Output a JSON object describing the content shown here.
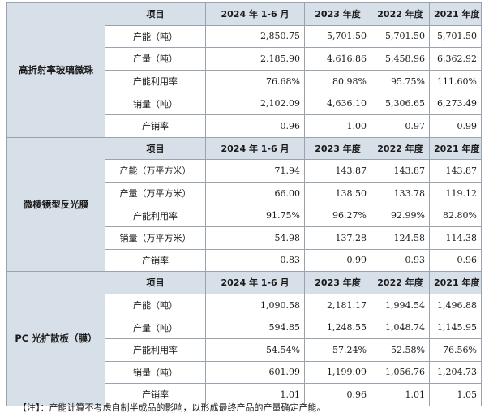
{
  "note": "【注】：产能计算不考虑自制半成品的影响，以形成最终产品的产量确定产能。",
  "sections": [
    {
      "product": "高折射率玻璃微珠",
      "header": [
        "项目",
        "2024 年 1-6 月",
        "2023 年度",
        "2022 年度",
        "2021 年度"
      ],
      "rows": [
        {
          "label": "产能（吨）",
          "values": [
            "2,850.75",
            "5,701.50",
            "5,701.50",
            "5,701.50"
          ]
        },
        {
          "label": "产量（吨）",
          "values": [
            "2,185.90",
            "4,616.86",
            "5,458.96",
            "6,362.92"
          ]
        },
        {
          "label": "产能利用率",
          "values": [
            "76.68%",
            "80.98%",
            "95.75%",
            "111.60%"
          ]
        },
        {
          "label": "销量（吨）",
          "values": [
            "2,102.09",
            "4,636.10",
            "5,306.65",
            "6,273.49"
          ]
        },
        {
          "label": "产销率",
          "values": [
            "0.96",
            "1.00",
            "0.97",
            "0.99"
          ]
        }
      ]
    },
    {
      "product": "微棱镜型反光膜",
      "header": [
        "项目",
        "2024 年 1-6 月",
        "2023 年度",
        "2022 年度",
        "2021 年度"
      ],
      "rows": [
        {
          "label": "产能（万平方米）",
          "values": [
            "71.94",
            "143.87",
            "143.87",
            "143.87"
          ]
        },
        {
          "label": "产量（万平方米）",
          "values": [
            "66.00",
            "138.50",
            "133.78",
            "119.12"
          ]
        },
        {
          "label": "产能利用率",
          "values": [
            "91.75%",
            "96.27%",
            "92.99%",
            "82.80%"
          ]
        },
        {
          "label": "销量（万平方米）",
          "values": [
            "54.98",
            "137.28",
            "124.58",
            "114.38"
          ]
        },
        {
          "label": "产销率",
          "values": [
            "0.83",
            "0.99",
            "0.93",
            "0.96"
          ]
        }
      ]
    },
    {
      "product": "PC 光扩散板（膜）",
      "header": [
        "项目",
        "2024 年 1-6 月",
        "2023 年度",
        "2022 年度",
        "2021 年度"
      ],
      "rows": [
        {
          "label": "产能（吨）",
          "values": [
            "1,090.58",
            "2,181.17",
            "1,994.54",
            "1,496.88"
          ]
        },
        {
          "label": "产量（吨）",
          "values": [
            "594.85",
            "1,248.55",
            "1,048.74",
            "1,145.95"
          ]
        },
        {
          "label": "产能利用率",
          "values": [
            "54.54%",
            "57.24%",
            "52.58%",
            "76.56%"
          ]
        },
        {
          "label": "销量（吨）",
          "values": [
            "601.99",
            "1,199.09",
            "1,056.76",
            "1,204.73"
          ]
        },
        {
          "label": "产销率",
          "values": [
            "1.01",
            "0.96",
            "1.01",
            "1.05"
          ]
        }
      ]
    }
  ]
}
